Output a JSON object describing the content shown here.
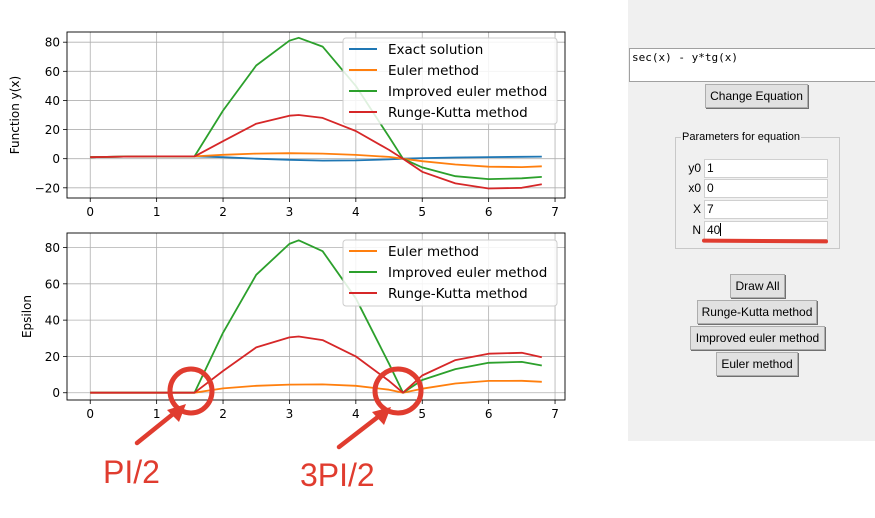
{
  "chart_data": [
    {
      "type": "line",
      "ylabel": "Function y(x)",
      "xlim": [
        -0.35,
        7.15
      ],
      "ylim": [
        -27,
        87
      ],
      "x_ticks": [
        "0",
        "1",
        "2",
        "3",
        "4",
        "5",
        "6",
        "7"
      ],
      "y_ticks": [
        "80",
        "60",
        "40",
        "20",
        "0",
        "−20"
      ],
      "y_tick_values": [
        80,
        60,
        40,
        20,
        0,
        -20
      ],
      "grid": true,
      "legend_position": "top-right",
      "series": [
        {
          "name": "Exact solution",
          "color": "#1f77b4",
          "x": [
            0,
            0.5,
            1,
            1.57,
            2,
            2.5,
            3,
            3.5,
            4,
            4.5,
            4.71,
            5,
            5.5,
            6,
            6.5,
            6.8
          ],
          "y": [
            1,
            1.4,
            1.6,
            1.6,
            1,
            0,
            -0.8,
            -1.3,
            -1.2,
            -0.5,
            0,
            0.4,
            0.8,
            1.1,
            1.3,
            1.4
          ]
        },
        {
          "name": "Euler method",
          "color": "#ff7f0e",
          "x": [
            0,
            0.5,
            1,
            1.57,
            2,
            2.5,
            3,
            3.5,
            4,
            4.5,
            4.71,
            5,
            5.5,
            6,
            6.5,
            6.8
          ],
          "y": [
            1,
            1.4,
            1.6,
            1.6,
            2.7,
            3.5,
            3.8,
            3.5,
            2.6,
            1.2,
            0,
            -1.7,
            -4,
            -5.5,
            -5.8,
            -5.2
          ]
        },
        {
          "name": "Improved euler method",
          "color": "#2ca02c",
          "x": [
            0,
            0.5,
            1,
            1.57,
            2,
            2.5,
            3,
            3.14,
            3.5,
            4,
            4.5,
            4.71,
            5,
            5.5,
            6,
            6.5,
            6.8
          ],
          "y": [
            1,
            1.4,
            1.6,
            1.6,
            33,
            64,
            81,
            83,
            77,
            50,
            15,
            0,
            -6,
            -12,
            -14,
            -13.5,
            -12.5
          ]
        },
        {
          "name": "Runge-Kutta method",
          "color": "#d62728",
          "x": [
            0,
            0.5,
            1,
            1.57,
            2,
            2.5,
            3,
            3.14,
            3.5,
            4,
            4.5,
            4.71,
            5,
            5.5,
            6,
            6.5,
            6.8
          ],
          "y": [
            1,
            1.4,
            1.6,
            1.6,
            12,
            24,
            29.5,
            30,
            28,
            19,
            6,
            0,
            -9,
            -17,
            -20.5,
            -20,
            -17.5
          ]
        }
      ]
    },
    {
      "type": "line",
      "ylabel": "Epsilon",
      "xlim": [
        -0.35,
        7.15
      ],
      "ylim": [
        -4,
        88
      ],
      "x_ticks": [
        "0",
        "1",
        "2",
        "3",
        "4",
        "5",
        "6",
        "7"
      ],
      "y_ticks": [
        "80",
        "60",
        "40",
        "20",
        "0"
      ],
      "y_tick_values": [
        80,
        60,
        40,
        20,
        0
      ],
      "grid": true,
      "legend_position": "top-right",
      "series": [
        {
          "name": "Euler method",
          "color": "#ff7f0e",
          "x": [
            0,
            0.5,
            1,
            1.57,
            2,
            2.5,
            3,
            3.5,
            4,
            4.5,
            4.71,
            5,
            5.5,
            6,
            6.5,
            6.8
          ],
          "y": [
            0,
            0,
            0,
            0,
            2.4,
            3.8,
            4.5,
            4.6,
            3.8,
            1.7,
            0,
            2.2,
            5.1,
            6.5,
            6.6,
            6
          ]
        },
        {
          "name": "Improved euler method",
          "color": "#2ca02c",
          "x": [
            0,
            0.5,
            1,
            1.57,
            2,
            2.5,
            3,
            3.14,
            3.5,
            4,
            4.5,
            4.71,
            5,
            5.5,
            6,
            6.5,
            6.8
          ],
          "y": [
            0,
            0,
            0,
            0,
            33,
            65,
            82,
            84,
            78,
            52,
            16,
            0,
            7,
            13,
            16.5,
            17,
            15
          ]
        },
        {
          "name": "Runge-Kutta method",
          "color": "#d62728",
          "x": [
            0,
            0.5,
            1,
            1.57,
            2,
            2.5,
            3,
            3.14,
            3.5,
            4,
            4.5,
            4.71,
            5,
            5.5,
            6,
            6.5,
            6.8
          ],
          "y": [
            0,
            0,
            0,
            0,
            12,
            25,
            30.5,
            31,
            29,
            20,
            6.5,
            0,
            9.5,
            18,
            21.5,
            22,
            19.5
          ]
        }
      ]
    }
  ],
  "annotations": {
    "left_label": "PI/2",
    "right_label": "3PI/2"
  },
  "panel": {
    "equation": "sec(x) - y*tg(x)",
    "change_button": "Change Equation",
    "params_title": "Parameters for equation",
    "params": [
      {
        "label": "y0",
        "value": "1"
      },
      {
        "label": "x0",
        "value": "0"
      },
      {
        "label": "X",
        "value": "7"
      },
      {
        "label": "N",
        "value": "40"
      }
    ],
    "buttons": {
      "draw_all": "Draw All",
      "runge_kutta": "Runge-Kutta method",
      "improved_euler": "Improved euler method",
      "euler": "Euler method"
    },
    "underline_color": "#e03c2f"
  }
}
